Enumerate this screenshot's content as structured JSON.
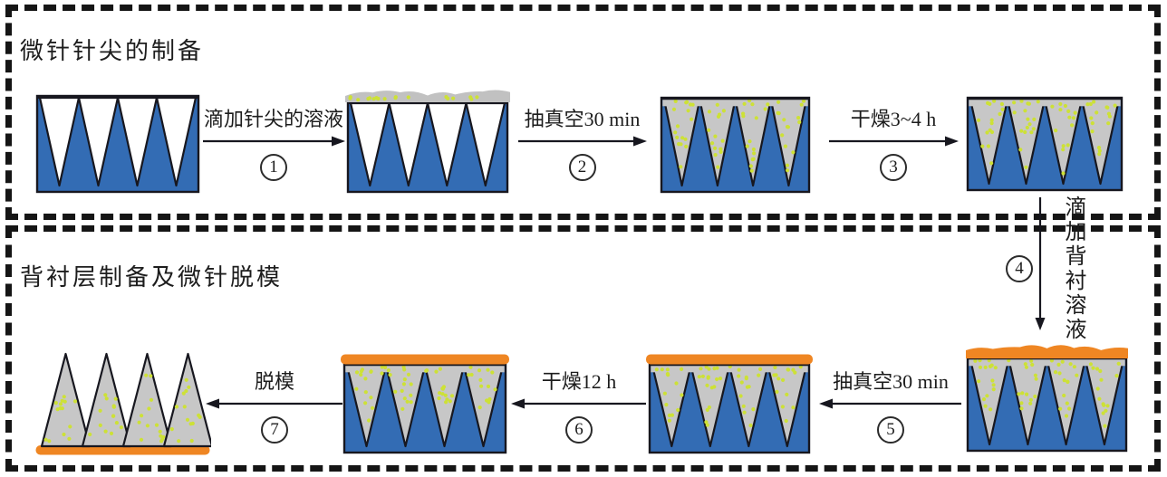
{
  "sections": {
    "top_title": "微针针尖的制备",
    "bottom_title": "背衬层制备及微针脱模"
  },
  "steps": [
    {
      "label": "滴加针尖的溶液",
      "number": "1"
    },
    {
      "label": "抽真空30 min",
      "number": "2"
    },
    {
      "label": "干燥3~4 h",
      "number": "3"
    },
    {
      "label": "滴加背衬溶液",
      "number": "4"
    },
    {
      "label": "抽真空30 min",
      "number": "5"
    },
    {
      "label": "干燥12 h",
      "number": "6"
    },
    {
      "label": "脱模",
      "number": "7"
    }
  ],
  "colors": {
    "mold_blue": "#336cb4",
    "cavity_gray": "#c7c7c7",
    "solution_gray": "#c1c1c1",
    "dot_yellow": "#cde136",
    "backing_orange": "#ef8623",
    "outline_black": "#17171f",
    "border_black": "#151515",
    "text_color": "#1c1c1c"
  }
}
